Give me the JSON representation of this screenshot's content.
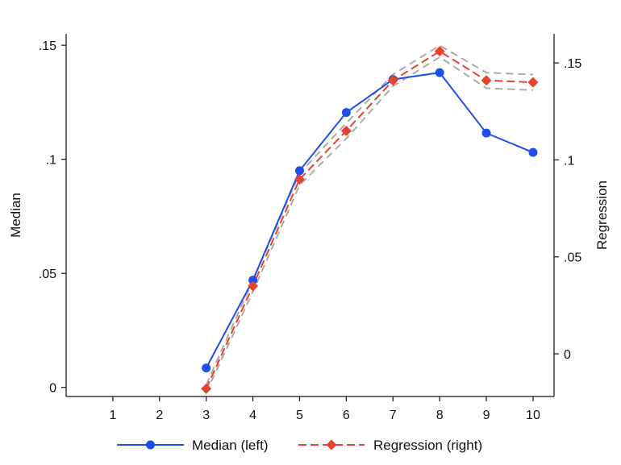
{
  "chart_data": {
    "type": "line",
    "x": [
      1,
      2,
      3,
      4,
      5,
      6,
      7,
      8,
      9,
      10
    ],
    "x_ticks": [
      1,
      2,
      3,
      4,
      5,
      6,
      7,
      8,
      9,
      10
    ],
    "left_axis": {
      "label": "Median",
      "ylim": [
        -0.004,
        0.155
      ],
      "ticks": [
        0,
        0.05,
        0.1,
        0.15
      ],
      "tick_labels": [
        "0",
        ".05",
        ".1",
        ".15"
      ]
    },
    "right_axis": {
      "label": "Regression",
      "ylim": [
        -0.022,
        0.165
      ],
      "ticks": [
        0,
        0.05,
        0.1,
        0.15
      ],
      "tick_labels": [
        "0",
        ".05",
        ".1",
        ".15"
      ]
    },
    "series": [
      {
        "name": "Median (left)",
        "axis": "left",
        "x": [
          3,
          4,
          5,
          6,
          7,
          8,
          9,
          10
        ],
        "values": [
          0.0085,
          0.047,
          0.095,
          0.1205,
          0.135,
          0.138,
          0.1115,
          0.103
        ],
        "color": "#1f4fe8",
        "marker": "circle",
        "style": "solid"
      },
      {
        "name": "Regression (right)",
        "axis": "right",
        "x": [
          3,
          4,
          5,
          6,
          7,
          8,
          9,
          10
        ],
        "values": [
          -0.018,
          0.035,
          0.09,
          0.115,
          0.141,
          0.156,
          0.141,
          0.14
        ],
        "ci_upper": [
          -0.016,
          0.038,
          0.093,
          0.119,
          0.144,
          0.159,
          0.145,
          0.144
        ],
        "ci_lower": [
          -0.02,
          0.032,
          0.087,
          0.111,
          0.138,
          0.153,
          0.137,
          0.136
        ],
        "color": "#e8412e",
        "ci_color": "#aaaaaa",
        "marker": "diamond",
        "style": "dashed"
      }
    ],
    "legend": {
      "placement": "bottom",
      "items": [
        "Median (left)",
        "Regression (right)"
      ]
    },
    "grid": false
  }
}
